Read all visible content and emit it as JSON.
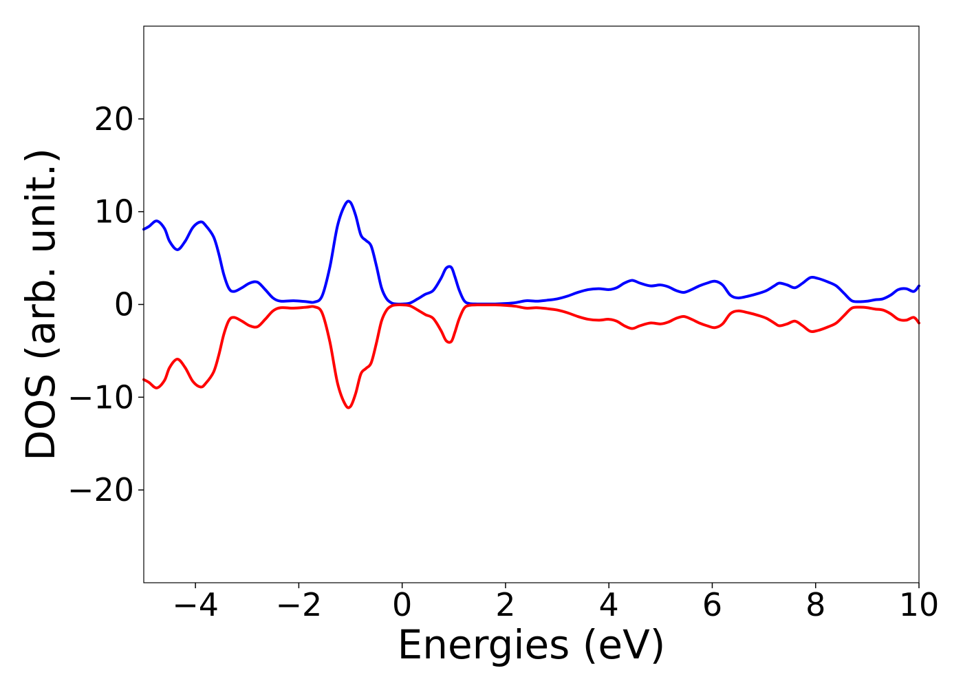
{
  "chart_data": {
    "type": "line",
    "xlabel": "Energies (eV)",
    "ylabel": "DOS (arb. unit.)",
    "xlim": [
      -5,
      10
    ],
    "ylim": [
      -30,
      30
    ],
    "x_ticks": [
      {
        "value": -4,
        "label": "−4"
      },
      {
        "value": -2,
        "label": "−2"
      },
      {
        "value": 0,
        "label": "0"
      },
      {
        "value": 2,
        "label": "2"
      },
      {
        "value": 4,
        "label": "4"
      },
      {
        "value": 6,
        "label": "6"
      },
      {
        "value": 8,
        "label": "8"
      },
      {
        "value": 10,
        "label": "10"
      }
    ],
    "y_ticks": [
      {
        "value": 20,
        "label": "20"
      },
      {
        "value": 10,
        "label": "10"
      },
      {
        "value": 0,
        "label": "0"
      },
      {
        "value": -10,
        "label": "−10"
      },
      {
        "value": -20,
        "label": "−20"
      }
    ],
    "grid": false,
    "legend": "none",
    "series": [
      {
        "color": "#0000ff",
        "x": [
          -5.0,
          -4.9,
          -4.75,
          -4.6,
          -4.5,
          -4.35,
          -4.2,
          -4.05,
          -3.9,
          -3.8,
          -3.65,
          -3.55,
          -3.45,
          -3.35,
          -3.25,
          -3.1,
          -2.95,
          -2.8,
          -2.65,
          -2.5,
          -2.35,
          -2.1,
          -1.85,
          -1.7,
          -1.55,
          -1.4,
          -1.25,
          -1.1,
          -1.0,
          -0.9,
          -0.8,
          -0.7,
          -0.6,
          -0.5,
          -0.4,
          -0.3,
          -0.2,
          -0.1,
          0.0,
          0.15,
          0.3,
          0.45,
          0.6,
          0.75,
          0.85,
          0.95,
          1.02,
          1.1,
          1.2,
          1.3,
          1.45,
          1.6,
          1.8,
          2.0,
          2.2,
          2.4,
          2.6,
          2.8,
          3.0,
          3.2,
          3.4,
          3.6,
          3.8,
          4.0,
          4.15,
          4.3,
          4.45,
          4.6,
          4.8,
          5.0,
          5.15,
          5.3,
          5.45,
          5.6,
          5.75,
          5.9,
          6.05,
          6.2,
          6.35,
          6.5,
          6.7,
          6.9,
          7.05,
          7.2,
          7.3,
          7.45,
          7.6,
          7.75,
          7.9,
          8.05,
          8.25,
          8.4,
          8.55,
          8.7,
          8.85,
          9.0,
          9.15,
          9.3,
          9.45,
          9.6,
          9.75,
          9.9,
          10.0
        ],
        "y": [
          8.1,
          8.4,
          9.0,
          8.2,
          6.8,
          5.9,
          6.8,
          8.3,
          8.9,
          8.5,
          7.3,
          5.5,
          3.2,
          1.7,
          1.4,
          1.8,
          2.3,
          2.4,
          1.6,
          0.7,
          0.35,
          0.4,
          0.3,
          0.25,
          0.9,
          4.0,
          8.5,
          10.8,
          11.0,
          9.6,
          7.5,
          6.9,
          6.3,
          4.2,
          1.8,
          0.6,
          0.15,
          0.05,
          0.05,
          0.15,
          0.6,
          1.1,
          1.5,
          2.8,
          3.9,
          4.0,
          3.0,
          1.6,
          0.4,
          0.1,
          0.05,
          0.05,
          0.05,
          0.1,
          0.2,
          0.4,
          0.35,
          0.45,
          0.6,
          0.9,
          1.3,
          1.6,
          1.7,
          1.6,
          1.8,
          2.3,
          2.6,
          2.3,
          2.0,
          2.1,
          1.9,
          1.5,
          1.3,
          1.6,
          2.0,
          2.3,
          2.5,
          2.1,
          1.0,
          0.7,
          0.9,
          1.2,
          1.5,
          2.0,
          2.3,
          2.1,
          1.8,
          2.3,
          2.9,
          2.8,
          2.4,
          2.0,
          1.2,
          0.4,
          0.3,
          0.35,
          0.5,
          0.6,
          1.0,
          1.6,
          1.7,
          1.4,
          2.0
        ]
      },
      {
        "color": "#ff0000",
        "x": [
          -5.0,
          -4.9,
          -4.75,
          -4.6,
          -4.5,
          -4.35,
          -4.2,
          -4.05,
          -3.9,
          -3.8,
          -3.65,
          -3.55,
          -3.45,
          -3.35,
          -3.25,
          -3.1,
          -2.95,
          -2.8,
          -2.65,
          -2.5,
          -2.35,
          -2.1,
          -1.85,
          -1.7,
          -1.55,
          -1.4,
          -1.25,
          -1.1,
          -1.0,
          -0.9,
          -0.8,
          -0.7,
          -0.6,
          -0.5,
          -0.4,
          -0.3,
          -0.2,
          -0.1,
          0.0,
          0.15,
          0.3,
          0.45,
          0.6,
          0.75,
          0.85,
          0.95,
          1.02,
          1.1,
          1.2,
          1.3,
          1.45,
          1.6,
          1.8,
          2.0,
          2.2,
          2.4,
          2.6,
          2.8,
          3.0,
          3.2,
          3.4,
          3.6,
          3.8,
          4.0,
          4.15,
          4.3,
          4.45,
          4.6,
          4.8,
          5.0,
          5.15,
          5.3,
          5.45,
          5.6,
          5.75,
          5.9,
          6.05,
          6.2,
          6.35,
          6.5,
          6.7,
          6.9,
          7.05,
          7.2,
          7.3,
          7.45,
          7.6,
          7.75,
          7.9,
          8.05,
          8.25,
          8.4,
          8.55,
          8.7,
          8.85,
          9.0,
          9.15,
          9.3,
          9.45,
          9.6,
          9.75,
          9.9,
          10.0
        ],
        "y": [
          -8.1,
          -8.4,
          -9.0,
          -8.2,
          -6.8,
          -5.9,
          -6.8,
          -8.3,
          -8.9,
          -8.5,
          -7.3,
          -5.5,
          -3.2,
          -1.7,
          -1.4,
          -1.8,
          -2.3,
          -2.4,
          -1.6,
          -0.7,
          -0.35,
          -0.4,
          -0.3,
          -0.25,
          -0.9,
          -4.0,
          -8.5,
          -10.8,
          -11.0,
          -9.6,
          -7.5,
          -6.9,
          -6.3,
          -4.2,
          -1.8,
          -0.6,
          -0.15,
          -0.05,
          -0.05,
          -0.15,
          -0.6,
          -1.1,
          -1.5,
          -2.8,
          -3.9,
          -4.0,
          -3.0,
          -1.6,
          -0.4,
          -0.1,
          -0.05,
          -0.05,
          -0.05,
          -0.1,
          -0.2,
          -0.4,
          -0.35,
          -0.45,
          -0.6,
          -0.9,
          -1.3,
          -1.6,
          -1.7,
          -1.6,
          -1.8,
          -2.3,
          -2.6,
          -2.3,
          -2.0,
          -2.1,
          -1.9,
          -1.5,
          -1.3,
          -1.6,
          -2.0,
          -2.3,
          -2.5,
          -2.1,
          -1.0,
          -0.7,
          -0.9,
          -1.2,
          -1.5,
          -2.0,
          -2.3,
          -2.1,
          -1.8,
          -2.3,
          -2.9,
          -2.8,
          -2.4,
          -2.0,
          -1.2,
          -0.4,
          -0.3,
          -0.35,
          -0.5,
          -0.6,
          -1.0,
          -1.6,
          -1.7,
          -1.4,
          -2.0
        ]
      }
    ]
  }
}
